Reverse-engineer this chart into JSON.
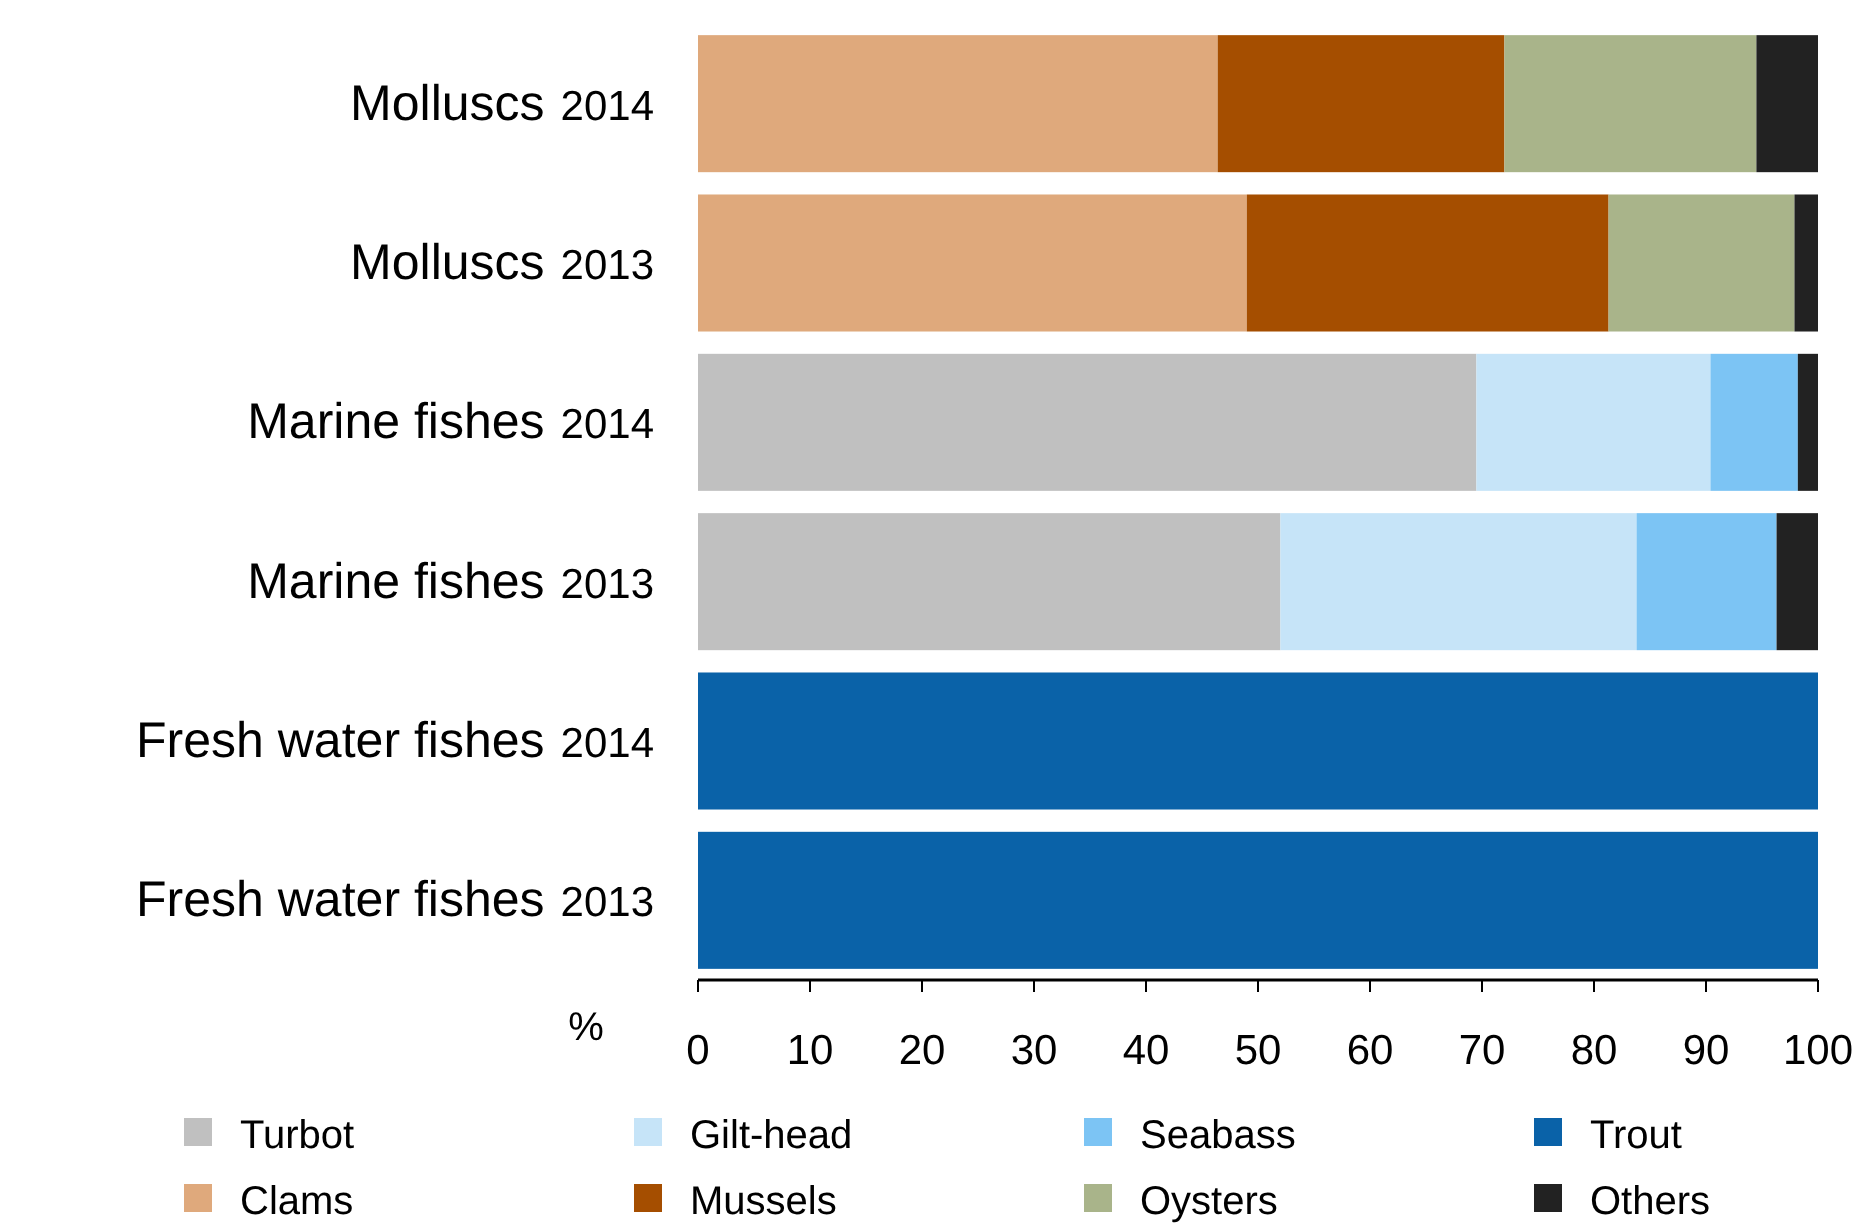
{
  "chart_data": {
    "type": "bar",
    "orientation": "horizontal",
    "stacked": true,
    "xlabel": "%",
    "categories": [
      "Molluscs 2014",
      "Molluscs 2013",
      "Marine fishes 2014",
      "Marine fishes 2013",
      "Fresh water fishes 2014",
      "Fresh water fishes 2013"
    ],
    "series": [
      {
        "name": "Turbot",
        "color": "#c0c0c0",
        "values": [
          null,
          null,
          69.5,
          52,
          null,
          null
        ]
      },
      {
        "name": "Gilt-head",
        "color": "#c6e4f8",
        "values": [
          null,
          null,
          20.9,
          31.8,
          null,
          null
        ]
      },
      {
        "name": "Seabass",
        "color": "#7cc4f4",
        "values": [
          null,
          null,
          7.8,
          12.5,
          null,
          null
        ]
      },
      {
        "name": "Trout",
        "color": "#0a62a8",
        "values": [
          null,
          null,
          null,
          null,
          100,
          100
        ]
      },
      {
        "name": "Clams",
        "color": "#dfa97c",
        "values": [
          46.4,
          49,
          null,
          null,
          null,
          null
        ]
      },
      {
        "name": "Mussels",
        "color": "#a54e00",
        "values": [
          25.6,
          32.3,
          null,
          null,
          null,
          null
        ]
      },
      {
        "name": "Oysters",
        "color": "#a9b48a",
        "values": [
          22.5,
          16.6,
          null,
          null,
          null,
          null
        ]
      },
      {
        "name": "Others",
        "color": "#222222",
        "values": [
          5.5,
          2.1,
          1.8,
          3.7,
          null,
          null
        ]
      }
    ],
    "xlim": [
      0,
      100
    ],
    "xticks": [
      0,
      10,
      20,
      30,
      40,
      50,
      60,
      70,
      80,
      90,
      100
    ],
    "grid": false,
    "legend": "bottom"
  }
}
